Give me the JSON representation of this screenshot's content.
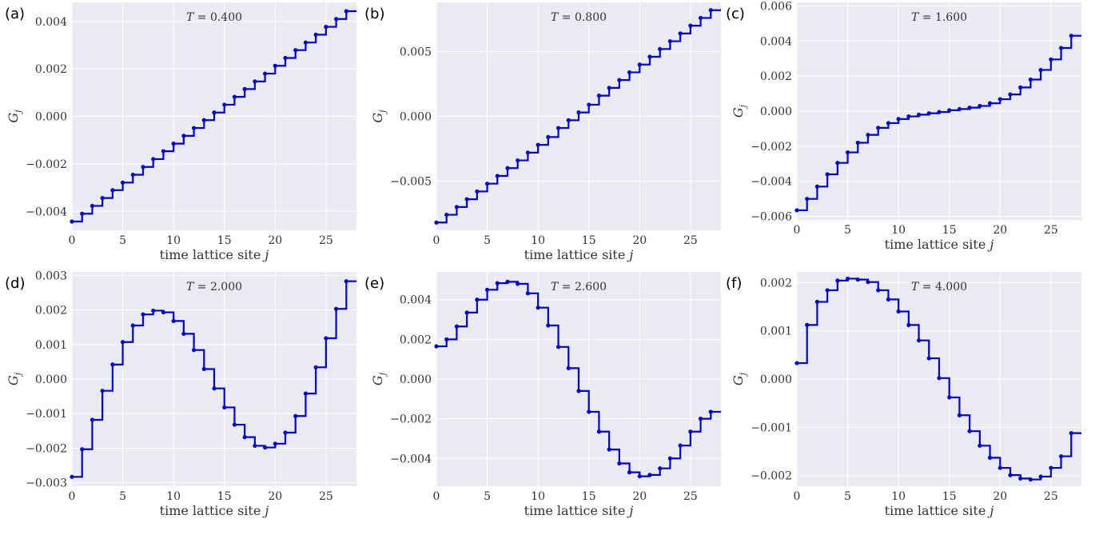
{
  "chart_data": [
    {
      "type": "line",
      "panel_label": "(a)",
      "annotation": "T = 0.400",
      "xlabel": "time lattice site j",
      "ylabel": "G_j",
      "xlim": [
        0,
        28
      ],
      "ylim": [
        -0.0048,
        0.0048
      ],
      "xticks": [
        0,
        5,
        10,
        15,
        20,
        25
      ],
      "xtick_labels": [
        "0",
        "5",
        "10",
        "15",
        "20",
        "25"
      ],
      "yticks": [
        -0.004,
        -0.002,
        0.0,
        0.002,
        0.004
      ],
      "ytick_labels": [
        "−0.004",
        "−0.002",
        "0.000",
        "0.002",
        "0.004"
      ],
      "x": [
        0,
        1,
        2,
        3,
        4,
        5,
        6,
        7,
        8,
        9,
        10,
        11,
        12,
        13,
        14,
        15,
        16,
        17,
        18,
        19,
        20,
        21,
        22,
        23,
        24,
        25,
        26,
        27
      ],
      "values": [
        -0.00443,
        -0.0041,
        -0.00377,
        -0.00344,
        -0.00311,
        -0.00279,
        -0.00246,
        -0.00213,
        -0.0018,
        -0.00147,
        -0.00115,
        -0.00082,
        -0.00049,
        -0.00016,
        0.00016,
        0.00049,
        0.00082,
        0.00115,
        0.00147,
        0.0018,
        0.00213,
        0.00246,
        0.00279,
        0.00311,
        0.00344,
        0.00377,
        0.0041,
        0.00443
      ]
    },
    {
      "type": "line",
      "panel_label": "(b)",
      "annotation": "T = 0.800",
      "xlabel": "time lattice site j",
      "ylabel": "G_j",
      "xlim": [
        0,
        28
      ],
      "ylim": [
        -0.0088,
        0.0088
      ],
      "xticks": [
        0,
        5,
        10,
        15,
        20,
        25
      ],
      "xtick_labels": [
        "0",
        "5",
        "10",
        "15",
        "20",
        "25"
      ],
      "yticks": [
        -0.005,
        0.0,
        0.005
      ],
      "ytick_labels": [
        "−0.005",
        "0.000",
        "0.005"
      ],
      "x": [
        0,
        1,
        2,
        3,
        4,
        5,
        6,
        7,
        8,
        9,
        10,
        11,
        12,
        13,
        14,
        15,
        16,
        17,
        18,
        19,
        20,
        21,
        22,
        23,
        24,
        25,
        26,
        27
      ],
      "values": [
        -0.0082,
        -0.0076,
        -0.007,
        -0.0064,
        -0.0058,
        -0.0052,
        -0.0046,
        -0.004,
        -0.0034,
        -0.0028,
        -0.0022,
        -0.0016,
        -0.0009,
        -0.0003,
        0.0003,
        0.0009,
        0.0016,
        0.0022,
        0.0028,
        0.0034,
        0.004,
        0.0046,
        0.0052,
        0.0058,
        0.0064,
        0.007,
        0.0076,
        0.0082
      ]
    },
    {
      "type": "line",
      "panel_label": "(c)",
      "annotation": "T = 1.600",
      "xlabel": "time lattice site j",
      "ylabel": "G_j",
      "xlim": [
        0,
        28
      ],
      "ylim": [
        -0.0062,
        0.0062
      ],
      "xticks": [
        0,
        5,
        10,
        15,
        20,
        25
      ],
      "xtick_labels": [
        "0",
        "5",
        "10",
        "15",
        "20",
        "25"
      ],
      "yticks": [
        -0.006,
        -0.004,
        -0.002,
        0.0,
        0.002,
        0.004,
        0.006
      ],
      "ytick_labels": [
        "−0.006",
        "−0.004",
        "−0.002",
        "0.000",
        "0.002",
        "0.004",
        "0.006"
      ],
      "x": [
        0,
        1,
        2,
        3,
        4,
        5,
        6,
        7,
        8,
        9,
        10,
        11,
        12,
        13,
        14,
        15,
        16,
        17,
        18,
        19,
        20,
        21,
        22,
        23,
        24,
        25,
        26,
        27
      ],
      "values": [
        -0.00565,
        -0.005,
        -0.0043,
        -0.0036,
        -0.00295,
        -0.00235,
        -0.0018,
        -0.00135,
        -0.00095,
        -0.00068,
        -0.00045,
        -0.0003,
        -0.0002,
        -0.00012,
        -5e-05,
        5e-05,
        0.00012,
        0.0002,
        0.0003,
        0.00045,
        0.00068,
        0.00095,
        0.00135,
        0.0018,
        0.00235,
        0.00295,
        0.0036,
        0.0043
      ]
    },
    {
      "type": "line",
      "panel_label": "(d)",
      "annotation": "T = 2.000",
      "xlabel": "time lattice site j",
      "ylabel": "G_j",
      "xlim": [
        0,
        28
      ],
      "ylim": [
        -0.0031,
        0.0031
      ],
      "xticks": [
        0,
        5,
        10,
        15,
        20,
        25
      ],
      "xtick_labels": [
        "0",
        "5",
        "10",
        "15",
        "20",
        "25"
      ],
      "yticks": [
        -0.003,
        -0.002,
        -0.001,
        0.0,
        0.001,
        0.002,
        0.003
      ],
      "ytick_labels": [
        "−0.003",
        "−0.002",
        "−0.001",
        "0.000",
        "0.001",
        "0.002",
        "0.003"
      ],
      "x": [
        0,
        1,
        2,
        3,
        4,
        5,
        6,
        7,
        8,
        9,
        10,
        11,
        12,
        13,
        14,
        15,
        16,
        17,
        18,
        19,
        20,
        21,
        22,
        23,
        24,
        25,
        26,
        27
      ],
      "values": [
        -0.00283,
        -0.00203,
        -0.00118,
        -0.00034,
        0.00042,
        0.00107,
        0.00155,
        0.00187,
        0.00198,
        0.00193,
        0.00168,
        0.00131,
        0.00084,
        0.00029,
        -0.00027,
        -0.00082,
        -0.00132,
        -0.00168,
        -0.00193,
        -0.00198,
        -0.00187,
        -0.00155,
        -0.00107,
        -0.00042,
        0.00034,
        0.00118,
        0.00203,
        0.00283
      ]
    },
    {
      "type": "line",
      "panel_label": "(e)",
      "annotation": "T = 2.600",
      "xlabel": "time lattice site j",
      "ylabel": "G_j",
      "xlim": [
        0,
        28
      ],
      "ylim": [
        -0.0054,
        0.0054
      ],
      "xticks": [
        0,
        5,
        10,
        15,
        20,
        25
      ],
      "xtick_labels": [
        "0",
        "5",
        "10",
        "15",
        "20",
        "25"
      ],
      "yticks": [
        -0.004,
        -0.002,
        0.0,
        0.002,
        0.004
      ],
      "ytick_labels": [
        "−0.004",
        "−0.002",
        "0.000",
        "0.002",
        "0.004"
      ],
      "x": [
        0,
        1,
        2,
        3,
        4,
        5,
        6,
        7,
        8,
        9,
        10,
        11,
        12,
        13,
        14,
        15,
        16,
        17,
        18,
        19,
        20,
        21,
        22,
        23,
        24,
        25,
        26,
        27
      ],
      "values": [
        0.00165,
        0.002,
        0.00265,
        0.00335,
        0.004,
        0.0045,
        0.00483,
        0.0049,
        0.0048,
        0.00432,
        0.0036,
        0.0027,
        0.00162,
        0.00055,
        -0.0006,
        -0.00165,
        -0.00265,
        -0.00355,
        -0.00425,
        -0.0047,
        -0.0049,
        -0.00483,
        -0.0045,
        -0.004,
        -0.00335,
        -0.00265,
        -0.002,
        -0.00165
      ]
    },
    {
      "type": "line",
      "panel_label": "(f)",
      "annotation": "T = 4.000",
      "xlabel": "time lattice site j",
      "ylabel": "G_j",
      "xlim": [
        0,
        28
      ],
      "ylim": [
        -0.00222,
        0.00222
      ],
      "xticks": [
        0,
        5,
        10,
        15,
        20,
        25
      ],
      "xtick_labels": [
        "0",
        "5",
        "10",
        "15",
        "20",
        "25"
      ],
      "yticks": [
        -0.002,
        -0.001,
        0.0,
        0.001,
        0.002
      ],
      "ytick_labels": [
        "−0.002",
        "−0.001",
        "0.000",
        "0.001",
        "0.002"
      ],
      "x": [
        0,
        1,
        2,
        3,
        4,
        5,
        6,
        7,
        8,
        9,
        10,
        11,
        12,
        13,
        14,
        15,
        16,
        17,
        18,
        19,
        20,
        21,
        22,
        23,
        24,
        25,
        26,
        27
      ],
      "values": [
        0.00033,
        0.00112,
        0.0016,
        0.00184,
        0.00204,
        0.00208,
        0.00206,
        0.00201,
        0.00184,
        0.00165,
        0.0014,
        0.00112,
        0.0008,
        0.00043,
        2e-05,
        -0.00038,
        -0.00075,
        -0.00108,
        -0.00138,
        -0.00163,
        -0.00184,
        -0.00199,
        -0.00206,
        -0.00208,
        -0.00202,
        -0.00184,
        -0.0016,
        -0.00112
      ]
    }
  ]
}
